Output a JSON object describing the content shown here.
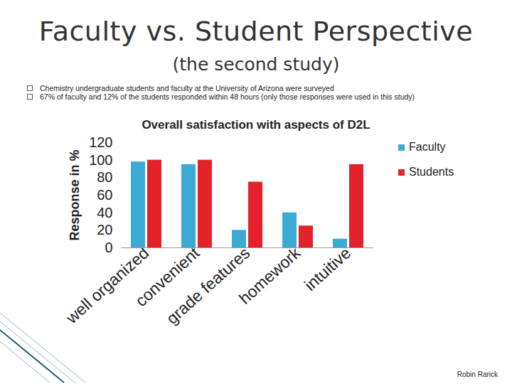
{
  "slide": {
    "title": "Faculty vs. Student Perspective",
    "subtitle": "(the second study)",
    "bullets": [
      "Chemistry undergraduate students and faculty at the University of Arizona were surveyed",
      "67% of faculty and 12% of the students responded within 48 hours (only those responses were used in this study)"
    ],
    "credit": "Robin Rarick"
  },
  "chart_data": {
    "type": "bar",
    "title": "Overall satisfaction with aspects of D2L",
    "y_label": "Response in %",
    "categories": [
      "well organized",
      "convenient",
      "grade features",
      "homework",
      "intuitive"
    ],
    "series": [
      {
        "name": "Faculty",
        "color": "#3cabd4",
        "values": [
          98,
          95,
          20,
          40,
          10
        ]
      },
      {
        "name": "Students",
        "color": "#e3222b",
        "values": [
          100,
          100,
          75,
          25,
          95
        ]
      }
    ],
    "ylim": [
      0,
      120
    ],
    "yticks": [
      0,
      20,
      40,
      60,
      80,
      100,
      120
    ],
    "grid": false,
    "legend": "right"
  }
}
